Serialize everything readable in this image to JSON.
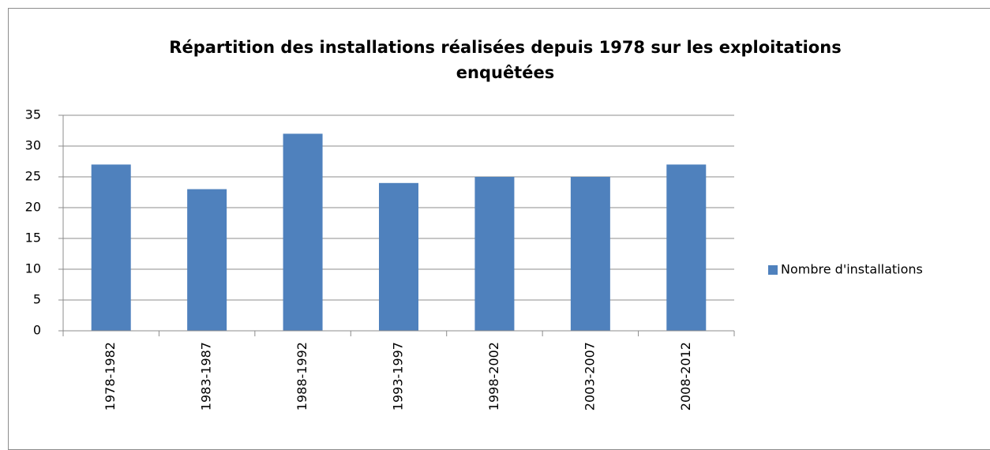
{
  "chart_data": {
    "type": "bar",
    "title": "Répartition des installations réalisées depuis 1978 sur les exploitations enquêtées",
    "categories": [
      "1978-1982",
      "1983-1987",
      "1988-1992",
      "1993-1997",
      "1998-2002",
      "2003-2007",
      "2008-2012"
    ],
    "series": [
      {
        "name": "Nombre d'installations",
        "color": "#4f81bd",
        "values": [
          27,
          23,
          32,
          24,
          25,
          25,
          27
        ]
      }
    ],
    "ylim": [
      0,
      35
    ],
    "yticks": [
      0,
      5,
      10,
      15,
      20,
      25,
      30,
      35
    ],
    "grid": true,
    "legend": "right"
  }
}
